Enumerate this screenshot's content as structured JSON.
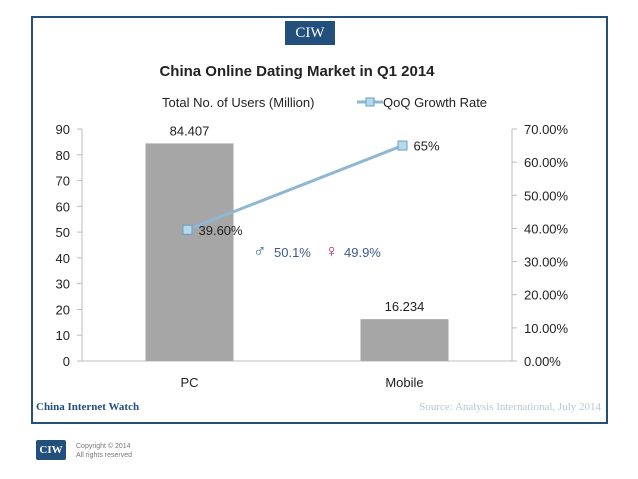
{
  "header": {
    "tag": "CIW"
  },
  "footer": {
    "brand": "China Internet Watch",
    "source": "Source: Analysis International, July 2014",
    "logo": "CIW",
    "copyright_line1": "Copyright © 2014",
    "copyright_line2": "All rights reserved"
  },
  "gender": {
    "male_pct": "50.1%",
    "female_pct": "49.9%",
    "male_color": "#2a6fb8",
    "female_color": "#b02888"
  },
  "chart_data": {
    "type": "bar",
    "title": "China Online Dating Market in Q1 2014",
    "categories": [
      "PC",
      "Mobile"
    ],
    "series": [
      {
        "name": "Total No. of Users (Million)",
        "kind": "bar",
        "axis": "left",
        "values": [
          84.407,
          16.234
        ],
        "labels": [
          "84.407",
          "16.234"
        ],
        "color": "#a6a6a6"
      },
      {
        "name": "QoQ Growth Rate",
        "kind": "line",
        "axis": "right",
        "values": [
          39.6,
          65
        ],
        "labels": [
          "39.60%",
          "65%"
        ],
        "color": "#8fb7d3"
      }
    ],
    "y_left": {
      "min": 0,
      "max": 90,
      "ticks": [
        "0",
        "10",
        "20",
        "30",
        "40",
        "50",
        "60",
        "70",
        "80",
        "90"
      ]
    },
    "y_right": {
      "min": 0,
      "max": 70,
      "ticks": [
        "0.00%",
        "10.00%",
        "20.00%",
        "30.00%",
        "40.00%",
        "50.00%",
        "60.00%",
        "70.00%"
      ]
    },
    "legend_position": "top"
  }
}
